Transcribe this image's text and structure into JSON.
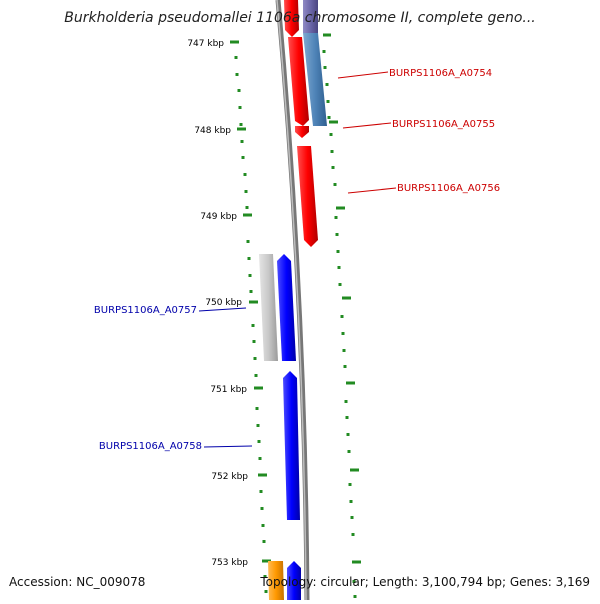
{
  "title": "Burkholderia pseudomallei 1106a chromosome II, complete geno...",
  "footer": {
    "accession": "Accession: NC_009078",
    "summary": "Topology: circular; Length: 3,100,794 bp; Genes: 3,169"
  },
  "ticks": [
    "747 kbp",
    "748 kbp",
    "749 kbp",
    "750 kbp",
    "751 kbp",
    "752 kbp",
    "753 kbp"
  ],
  "genes": [
    {
      "label": "BURPS1106A_A0754",
      "color": "#cc0000",
      "side": "right"
    },
    {
      "label": "BURPS1106A_A0755",
      "color": "#cc0000",
      "side": "right"
    },
    {
      "label": "BURPS1106A_A0756",
      "color": "#cc0000",
      "side": "right"
    },
    {
      "label": "BURPS1106A_A0757",
      "color": "#0000aa",
      "side": "left"
    },
    {
      "label": "BURPS1106A_A0758",
      "color": "#0000aa",
      "side": "left"
    }
  ],
  "colors": {
    "tick": "#228b22",
    "backbone": "#888888",
    "forward_gene": "#ff0000",
    "reverse_gene": "#0000ff",
    "steelblue_feature": "#4f84b8",
    "gray_feature": "#c8c8c8",
    "orange_feature": "#ff9900",
    "purple_feature": "#6b66a8"
  }
}
